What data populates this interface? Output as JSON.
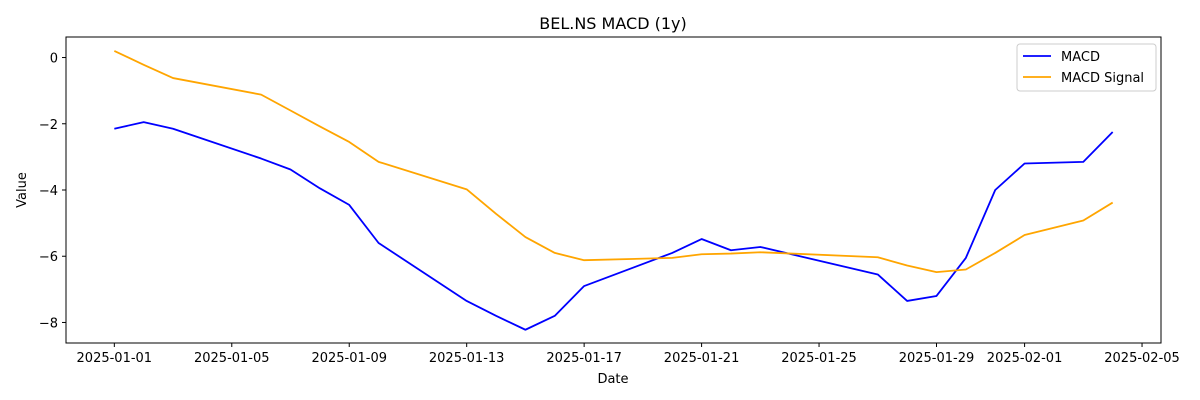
{
  "chart_data": {
    "type": "line",
    "title": "BEL.NS MACD (1y)",
    "xlabel": "Date",
    "ylabel": "Value",
    "x_ticks": [
      "2025-01-01",
      "2025-01-05",
      "2025-01-09",
      "2025-01-13",
      "2025-01-17",
      "2025-01-21",
      "2025-01-25",
      "2025-01-29",
      "2025-02-01",
      "2025-02-05"
    ],
    "y_ticks": [
      0,
      -2,
      -4,
      -6,
      -8
    ],
    "y_tick_labels": [
      "0",
      "−2",
      "−4",
      "−6",
      "−8"
    ],
    "xlim": [
      "2024-12-30T08:30",
      "2025-02-05T15:30"
    ],
    "ylim": [
      -8.62,
      0.62
    ],
    "grid": false,
    "legend_position": "top-right",
    "series": [
      {
        "name": "MACD",
        "color": "#0000ff",
        "points": [
          [
            "2025-01-01",
            -2.15
          ],
          [
            "2025-01-02",
            -1.95
          ],
          [
            "2025-01-03",
            -2.15
          ],
          [
            "2025-01-06",
            -3.05
          ],
          [
            "2025-01-07",
            -3.38
          ],
          [
            "2025-01-08",
            -3.95
          ],
          [
            "2025-01-09",
            -4.45
          ],
          [
            "2025-01-10",
            -5.6
          ],
          [
            "2025-01-13",
            -7.35
          ],
          [
            "2025-01-14",
            -7.8
          ],
          [
            "2025-01-15",
            -8.22
          ],
          [
            "2025-01-16",
            -7.8
          ],
          [
            "2025-01-17",
            -6.9
          ],
          [
            "2025-01-20",
            -5.9
          ],
          [
            "2025-01-21",
            -5.48
          ],
          [
            "2025-01-22",
            -5.82
          ],
          [
            "2025-01-23",
            -5.72
          ],
          [
            "2025-01-27",
            -6.55
          ],
          [
            "2025-01-28",
            -7.35
          ],
          [
            "2025-01-29",
            -7.2
          ],
          [
            "2025-01-30",
            -6.05
          ],
          [
            "2025-01-31",
            -4.0
          ],
          [
            "2025-02-01",
            -3.2
          ],
          [
            "2025-02-03",
            -3.15
          ],
          [
            "2025-02-04",
            -2.25
          ]
        ]
      },
      {
        "name": "MACD Signal",
        "color": "#ffa500",
        "points": [
          [
            "2025-01-01",
            0.2
          ],
          [
            "2025-01-02",
            -0.22
          ],
          [
            "2025-01-03",
            -0.62
          ],
          [
            "2025-01-06",
            -1.12
          ],
          [
            "2025-01-07",
            -1.6
          ],
          [
            "2025-01-08",
            -2.08
          ],
          [
            "2025-01-09",
            -2.55
          ],
          [
            "2025-01-10",
            -3.15
          ],
          [
            "2025-01-13",
            -3.98
          ],
          [
            "2025-01-14",
            -4.72
          ],
          [
            "2025-01-15",
            -5.42
          ],
          [
            "2025-01-16",
            -5.9
          ],
          [
            "2025-01-17",
            -6.12
          ],
          [
            "2025-01-20",
            -6.05
          ],
          [
            "2025-01-21",
            -5.94
          ],
          [
            "2025-01-22",
            -5.92
          ],
          [
            "2025-01-23",
            -5.88
          ],
          [
            "2025-01-27",
            -6.03
          ],
          [
            "2025-01-28",
            -6.28
          ],
          [
            "2025-01-29",
            -6.48
          ],
          [
            "2025-01-30",
            -6.4
          ],
          [
            "2025-01-31",
            -5.9
          ],
          [
            "2025-02-01",
            -5.36
          ],
          [
            "2025-02-03",
            -4.92
          ],
          [
            "2025-02-04",
            -4.38
          ]
        ]
      }
    ]
  }
}
